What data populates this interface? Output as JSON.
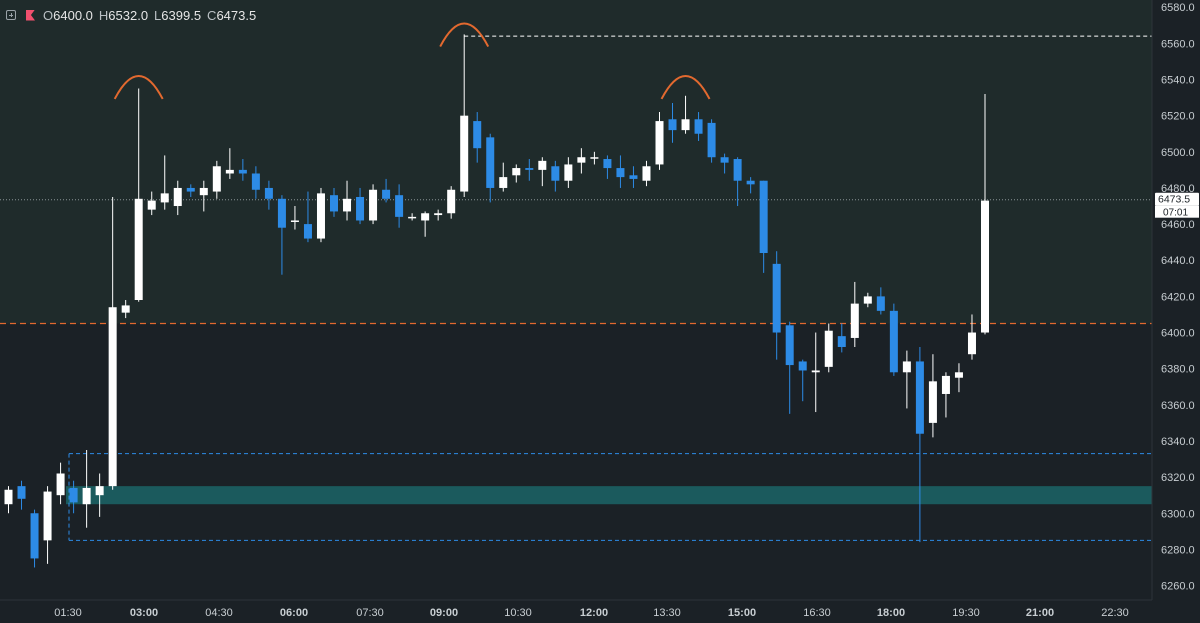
{
  "legend": {
    "open_label": "O",
    "open": "6400.0",
    "high_label": "H",
    "high": "6532.0",
    "low_label": "L",
    "low": "6399.5",
    "close_label": "C",
    "close": "6473.5"
  },
  "colors": {
    "background": "#1b2126",
    "upper_zone": "#1f2b2b",
    "up_candle": "#ffffff",
    "down_candle": "#2d8be6",
    "support_zone": "#1b5a5d",
    "orange_line": "#e2692f",
    "blue_dashed": "#2d8be6",
    "white_dashed": "#ffffff",
    "axis_text": "#c8ced2",
    "price_line": "#8a9396"
  },
  "chart_data": {
    "type": "candlestick",
    "y_axis": {
      "min": 6252,
      "max": 6584,
      "ticks": [
        6260,
        6280,
        6300,
        6320,
        6340,
        6360,
        6380,
        6400,
        6420,
        6440,
        6460,
        6480,
        6500,
        6520,
        6540,
        6560,
        6580
      ],
      "tick_labels": [
        "6260.0",
        "6280.0",
        "6300.0",
        "6320.0",
        "6340.0",
        "6360.0",
        "6380.0",
        "6400.0",
        "6420.0",
        "6440.0",
        "6460.0",
        "6480.0",
        "6500.0",
        "6520.0",
        "6540.0",
        "6560.0",
        "6580.0"
      ]
    },
    "x_axis": {
      "tick_labels": [
        "01:30",
        "03:00",
        "04:30",
        "06:00",
        "07:30",
        "09:00",
        "10:30",
        "12:00",
        "13:30",
        "15:00",
        "16:30",
        "18:00",
        "19:30",
        "21:00",
        "22:30"
      ],
      "bold_labels": [
        "03:00",
        "06:00",
        "09:00",
        "12:00",
        "15:00",
        "18:00",
        "21:00"
      ]
    },
    "candles": [
      [
        6305,
        6313,
        6300,
        6315
      ],
      [
        6315,
        6308,
        6302,
        6318
      ],
      [
        6300,
        6275,
        6270,
        6302
      ],
      [
        6285,
        6312,
        6272,
        6315
      ],
      [
        6310,
        6322,
        6305,
        6328
      ],
      [
        6314,
        6306,
        6300,
        6318
      ],
      [
        6305,
        6314,
        6292,
        6335
      ],
      [
        6310,
        6315,
        6298,
        6322
      ],
      [
        6315,
        6414,
        6313,
        6475
      ],
      [
        6411,
        6415,
        6408,
        6418
      ],
      [
        6418,
        6474,
        6417,
        6535
      ],
      [
        6468,
        6473,
        6465,
        6478
      ],
      [
        6472,
        6477,
        6468,
        6498
      ],
      [
        6470,
        6480,
        6465,
        6484
      ],
      [
        6480,
        6478,
        6475,
        6482
      ],
      [
        6476,
        6480,
        6467,
        6484
      ],
      [
        6478,
        6492,
        6474,
        6495
      ],
      [
        6488,
        6490,
        6485,
        6502
      ],
      [
        6490,
        6488,
        6484,
        6496
      ],
      [
        6488,
        6479,
        6474,
        6492
      ],
      [
        6480,
        6474,
        6468,
        6484
      ],
      [
        6474,
        6458,
        6432,
        6476
      ],
      [
        6462,
        6462,
        6457,
        6470
      ],
      [
        6460,
        6452,
        6450,
        6478
      ],
      [
        6452,
        6477,
        6450,
        6480
      ],
      [
        6476,
        6467,
        6464,
        6480
      ],
      [
        6467,
        6474,
        6462,
        6484
      ],
      [
        6475,
        6462,
        6460,
        6480
      ],
      [
        6462,
        6479,
        6460,
        6482
      ],
      [
        6479,
        6474,
        6472,
        6485
      ],
      [
        6476,
        6464,
        6458,
        6482
      ],
      [
        6464,
        6464,
        6462,
        6466
      ],
      [
        6462,
        6466,
        6453,
        6467
      ],
      [
        6465,
        6466,
        6462,
        6468
      ],
      [
        6466,
        6479,
        6463,
        6481
      ],
      [
        6478,
        6520,
        6475,
        6565
      ],
      [
        6517,
        6502,
        6494,
        6522
      ],
      [
        6508,
        6480,
        6472,
        6510
      ],
      [
        6480,
        6486,
        6478,
        6494
      ],
      [
        6487,
        6491,
        6483,
        6493
      ],
      [
        6491,
        6490,
        6484,
        6496
      ],
      [
        6490,
        6495,
        6481,
        6497
      ],
      [
        6492,
        6484,
        6478,
        6495
      ],
      [
        6484,
        6493,
        6480,
        6497
      ],
      [
        6494,
        6497,
        6488,
        6502
      ],
      [
        6497,
        6497,
        6493,
        6500
      ],
      [
        6496,
        6491,
        6485,
        6498
      ],
      [
        6491,
        6486,
        6480,
        6498
      ],
      [
        6487,
        6485,
        6480,
        6492
      ],
      [
        6484,
        6492,
        6481,
        6495
      ],
      [
        6493,
        6517,
        6490,
        6522
      ],
      [
        6518,
        6512,
        6505,
        6527
      ],
      [
        6512,
        6518,
        6510,
        6531
      ],
      [
        6518,
        6510,
        6506,
        6522
      ],
      [
        6516,
        6497,
        6494,
        6518
      ],
      [
        6497,
        6494,
        6488,
        6499
      ],
      [
        6496,
        6484,
        6470,
        6497
      ],
      [
        6484,
        6482,
        6477,
        6486
      ],
      [
        6484,
        6444,
        6433,
        6484
      ],
      [
        6438,
        6400,
        6385,
        6445
      ],
      [
        6404,
        6382,
        6355,
        6406
      ],
      [
        6384,
        6379,
        6362,
        6385
      ],
      [
        6378,
        6379,
        6356,
        6400
      ],
      [
        6381,
        6401,
        6378,
        6405
      ],
      [
        6398,
        6392,
        6389,
        6405
      ],
      [
        6397,
        6416,
        6392,
        6428
      ],
      [
        6416,
        6420,
        6414,
        6422
      ],
      [
        6420,
        6412,
        6410,
        6425
      ],
      [
        6412,
        6378,
        6376,
        6416
      ],
      [
        6378,
        6384,
        6358,
        6390
      ],
      [
        6384,
        6344,
        6284,
        6392
      ],
      [
        6350,
        6373,
        6342,
        6388
      ],
      [
        6366,
        6376,
        6353,
        6378
      ],
      [
        6375,
        6378,
        6367,
        6383
      ],
      [
        6388,
        6400,
        6385,
        6410
      ],
      [
        6400,
        6473,
        6399,
        6532
      ]
    ],
    "current_price": 6473.5,
    "current_price_label": "6473.5",
    "countdown_label": "07:01",
    "support_zone": [
      6305,
      6315
    ],
    "orange_line": 6405,
    "blue_dashed_lines": [
      6333,
      6285
    ],
    "white_dashed_line": 6564,
    "arcs": [
      {
        "candle": 10,
        "price_base": 6537
      },
      {
        "candle": 35,
        "price_base": 6566
      },
      {
        "candle": 52,
        "price_base": 6537
      }
    ]
  }
}
